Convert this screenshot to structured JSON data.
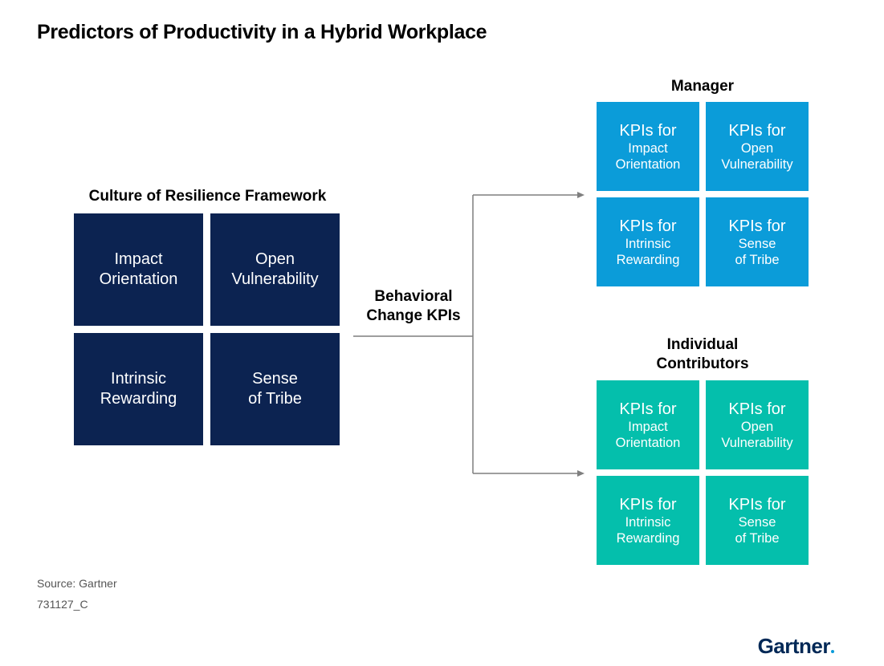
{
  "title": "Predictors of Productivity in a Hybrid Workplace",
  "colors": {
    "framework": "#0c2351",
    "manager": "#0b9cd9",
    "individual": "#04bfac",
    "connector": "#7f7f7f",
    "brand": "#002856",
    "brand_dot": "#0b9cd9"
  },
  "framework": {
    "title": "Culture of Resilience Framework",
    "tiles": [
      {
        "line1": "Impact",
        "line2": "Orientation"
      },
      {
        "line1": "Open",
        "line2": "Vulnerability"
      },
      {
        "line1": "Intrinsic",
        "line2": "Rewarding"
      },
      {
        "line1": "Sense",
        "line2": "of Tribe"
      }
    ]
  },
  "connector_label": {
    "line1": "Behavioral",
    "line2": "Change KPIs"
  },
  "manager": {
    "title": "Manager",
    "tiles": [
      {
        "head": "KPIs for",
        "line1": "Impact",
        "line2": "Orientation"
      },
      {
        "head": "KPIs for",
        "line1": "Open",
        "line2": "Vulnerability"
      },
      {
        "head": "KPIs for",
        "line1": "Intrinsic",
        "line2": "Rewarding"
      },
      {
        "head": "KPIs for",
        "line1": "Sense",
        "line2": "of Tribe"
      }
    ]
  },
  "individual": {
    "title_line1": "Individual",
    "title_line2": "Contributors",
    "tiles": [
      {
        "head": "KPIs for",
        "line1": "Impact",
        "line2": "Orientation"
      },
      {
        "head": "KPIs for",
        "line1": "Open",
        "line2": "Vulnerability"
      },
      {
        "head": "KPIs for",
        "line1": "Intrinsic",
        "line2": "Rewarding"
      },
      {
        "head": "KPIs for",
        "line1": "Sense",
        "line2": "of Tribe"
      }
    ]
  },
  "footer": {
    "source": "Source: Gartner",
    "code": "731127_C",
    "brand": "Gartner"
  }
}
